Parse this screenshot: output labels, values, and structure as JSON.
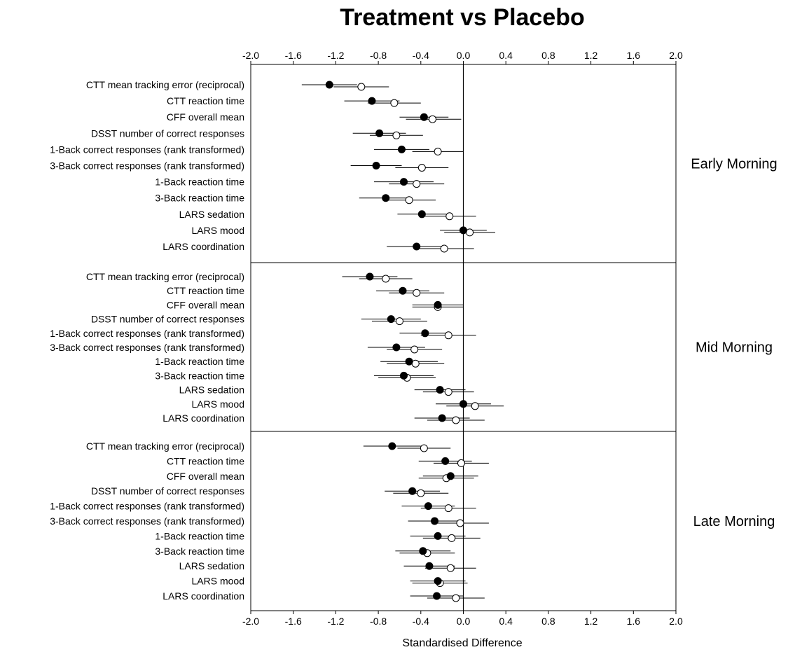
{
  "chart_data": {
    "type": "scatter",
    "title": "Treatment vs Placebo",
    "xlabel": "Standardised Difference",
    "xlim": [
      -2.0,
      2.0
    ],
    "xticks": [
      "-2.0",
      "-1.6",
      "-1.2",
      "-0.8",
      "-0.4",
      "0.0",
      "0.4",
      "0.8",
      "1.2",
      "1.6",
      "2.0"
    ],
    "xtick_values": [
      -2.0,
      -1.6,
      -1.2,
      -0.8,
      -0.4,
      0.0,
      0.4,
      0.8,
      1.2,
      1.6,
      2.0
    ],
    "reference_line": 0.0,
    "marker_styles": {
      "filled": "#000000",
      "open": "#ffffff"
    },
    "measures": [
      "CTT mean tracking error (reciprocal)",
      "CTT reaction time",
      "CFF overall mean",
      "DSST number of correct responses",
      "1-Back correct responses (rank transformed)",
      "3-Back correct responses (rank transformed)",
      "1-Back reaction time",
      "3-Back reaction time",
      "LARS sedation",
      "LARS mood",
      "LARS coordination"
    ],
    "panels": [
      {
        "name": "Early Morning",
        "filled": [
          {
            "est": -1.26,
            "lo": -1.52,
            "hi": -1.0
          },
          {
            "est": -0.86,
            "lo": -1.12,
            "hi": -0.6
          },
          {
            "est": -0.37,
            "lo": -0.6,
            "hi": -0.14
          },
          {
            "est": -0.79,
            "lo": -1.04,
            "hi": -0.54
          },
          {
            "est": -0.58,
            "lo": -0.84,
            "hi": -0.32
          },
          {
            "est": -0.82,
            "lo": -1.06,
            "hi": -0.58
          },
          {
            "est": -0.56,
            "lo": -0.84,
            "hi": -0.28
          },
          {
            "est": -0.73,
            "lo": -0.98,
            "hi": -0.48
          },
          {
            "est": -0.39,
            "lo": -0.62,
            "hi": -0.16
          },
          {
            "est": 0.0,
            "lo": -0.22,
            "hi": 0.22
          },
          {
            "est": -0.44,
            "lo": -0.72,
            "hi": -0.16
          }
        ],
        "open": [
          {
            "est": -0.96,
            "lo": -1.22,
            "hi": -0.7
          },
          {
            "est": -0.65,
            "lo": -0.9,
            "hi": -0.4
          },
          {
            "est": -0.29,
            "lo": -0.54,
            "hi": -0.02
          },
          {
            "est": -0.63,
            "lo": -0.88,
            "hi": -0.38
          },
          {
            "est": -0.24,
            "lo": -0.48,
            "hi": 0.0
          },
          {
            "est": -0.39,
            "lo": -0.64,
            "hi": -0.14
          },
          {
            "est": -0.44,
            "lo": -0.7,
            "hi": -0.18
          },
          {
            "est": -0.51,
            "lo": -0.76,
            "hi": -0.26
          },
          {
            "est": -0.13,
            "lo": -0.38,
            "hi": 0.12
          },
          {
            "est": 0.06,
            "lo": -0.18,
            "hi": 0.3
          },
          {
            "est": -0.18,
            "lo": -0.46,
            "hi": 0.1
          }
        ]
      },
      {
        "name": "Mid Morning",
        "filled": [
          {
            "est": -0.88,
            "lo": -1.14,
            "hi": -0.62
          },
          {
            "est": -0.57,
            "lo": -0.82,
            "hi": -0.32
          },
          {
            "est": -0.24,
            "lo": -0.48,
            "hi": 0.0
          },
          {
            "est": -0.68,
            "lo": -0.96,
            "hi": -0.4
          },
          {
            "est": -0.36,
            "lo": -0.6,
            "hi": -0.12
          },
          {
            "est": -0.63,
            "lo": -0.9,
            "hi": -0.36
          },
          {
            "est": -0.51,
            "lo": -0.78,
            "hi": -0.24
          },
          {
            "est": -0.56,
            "lo": -0.84,
            "hi": -0.28
          },
          {
            "est": -0.22,
            "lo": -0.46,
            "hi": 0.02
          },
          {
            "est": 0.0,
            "lo": -0.26,
            "hi": 0.26
          },
          {
            "est": -0.2,
            "lo": -0.46,
            "hi": 0.06
          }
        ],
        "open": [
          {
            "est": -0.73,
            "lo": -0.98,
            "hi": -0.48
          },
          {
            "est": -0.44,
            "lo": -0.7,
            "hi": -0.18
          },
          {
            "est": -0.24,
            "lo": -0.48,
            "hi": 0.0
          },
          {
            "est": -0.6,
            "lo": -0.86,
            "hi": -0.34
          },
          {
            "est": -0.14,
            "lo": -0.4,
            "hi": 0.12
          },
          {
            "est": -0.46,
            "lo": -0.72,
            "hi": -0.2
          },
          {
            "est": -0.45,
            "lo": -0.72,
            "hi": -0.18
          },
          {
            "est": -0.53,
            "lo": -0.8,
            "hi": -0.26
          },
          {
            "est": -0.14,
            "lo": -0.38,
            "hi": 0.1
          },
          {
            "est": 0.11,
            "lo": -0.16,
            "hi": 0.38
          },
          {
            "est": -0.07,
            "lo": -0.34,
            "hi": 0.2
          }
        ]
      },
      {
        "name": "Late Morning",
        "filled": [
          {
            "est": -0.67,
            "lo": -0.94,
            "hi": -0.4
          },
          {
            "est": -0.17,
            "lo": -0.42,
            "hi": 0.08
          },
          {
            "est": -0.12,
            "lo": -0.38,
            "hi": 0.14
          },
          {
            "est": -0.48,
            "lo": -0.74,
            "hi": -0.22
          },
          {
            "est": -0.33,
            "lo": -0.58,
            "hi": -0.08
          },
          {
            "est": -0.27,
            "lo": -0.52,
            "hi": -0.02
          },
          {
            "est": -0.24,
            "lo": -0.5,
            "hi": 0.02
          },
          {
            "est": -0.38,
            "lo": -0.64,
            "hi": -0.12
          },
          {
            "est": -0.32,
            "lo": -0.56,
            "hi": -0.08
          },
          {
            "est": -0.24,
            "lo": -0.5,
            "hi": 0.02
          },
          {
            "est": -0.25,
            "lo": -0.5,
            "hi": 0.0
          }
        ],
        "open": [
          {
            "est": -0.37,
            "lo": -0.62,
            "hi": -0.12
          },
          {
            "est": -0.02,
            "lo": -0.28,
            "hi": 0.24
          },
          {
            "est": -0.16,
            "lo": -0.42,
            "hi": 0.1
          },
          {
            "est": -0.4,
            "lo": -0.66,
            "hi": -0.14
          },
          {
            "est": -0.14,
            "lo": -0.4,
            "hi": 0.12
          },
          {
            "est": -0.03,
            "lo": -0.3,
            "hi": 0.24
          },
          {
            "est": -0.11,
            "lo": -0.38,
            "hi": 0.16
          },
          {
            "est": -0.34,
            "lo": -0.6,
            "hi": -0.08
          },
          {
            "est": -0.12,
            "lo": -0.36,
            "hi": 0.12
          },
          {
            "est": -0.22,
            "lo": -0.48,
            "hi": 0.04
          },
          {
            "est": -0.07,
            "lo": -0.34,
            "hi": 0.2
          }
        ]
      }
    ]
  }
}
